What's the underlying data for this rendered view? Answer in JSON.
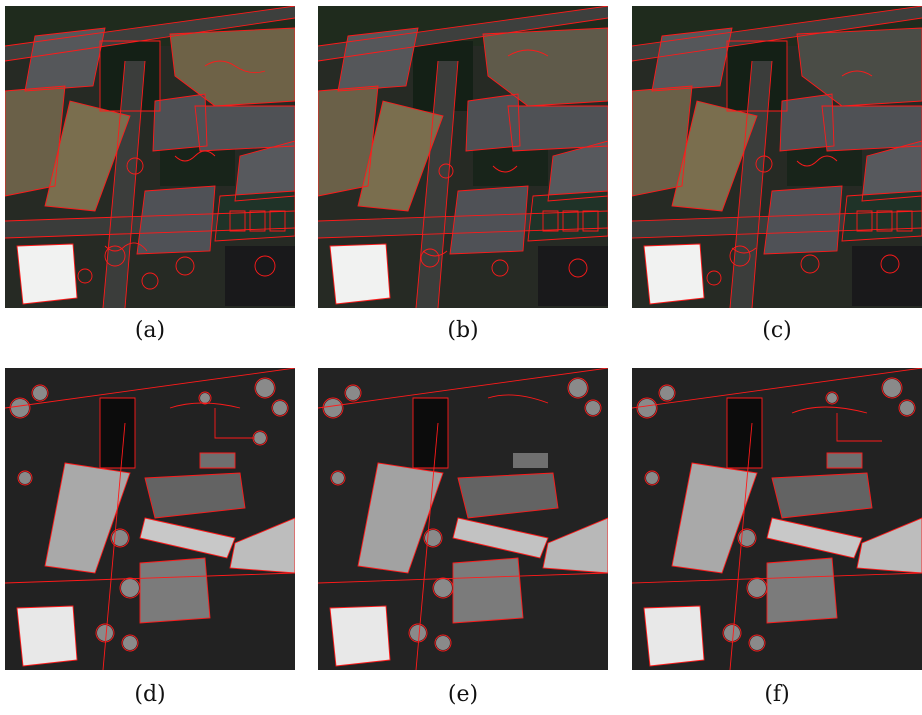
{
  "panels": [
    {
      "caption": "(a)",
      "kind": "rgb"
    },
    {
      "caption": "(b)",
      "kind": "rgb"
    },
    {
      "caption": "(c)",
      "kind": "rgb"
    },
    {
      "caption": "(d)",
      "kind": "dsm"
    },
    {
      "caption": "(e)",
      "kind": "dsm"
    },
    {
      "caption": "(f)",
      "kind": "dsm"
    }
  ],
  "colors": {
    "segment_boundary": "#ff1a1a",
    "background": "#ffffff"
  }
}
